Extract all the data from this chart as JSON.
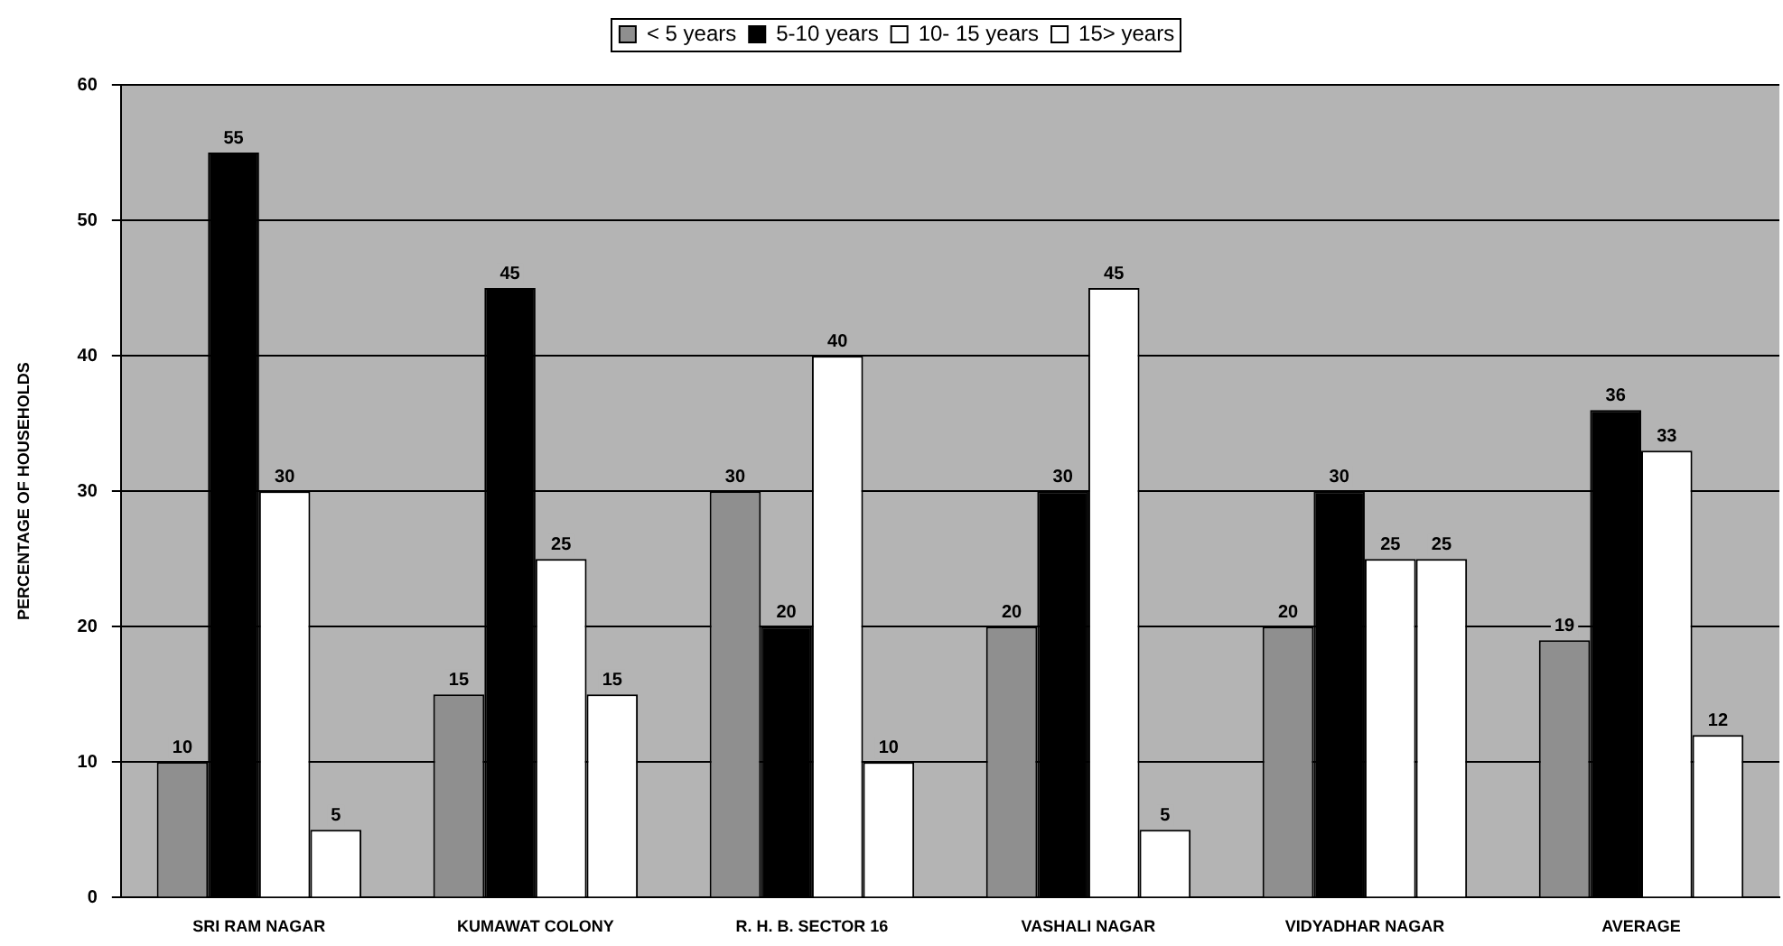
{
  "chart_data": {
    "type": "bar",
    "categories": [
      "SRI RAM NAGAR",
      "KUMAWAT COLONY",
      "R. H. B. SECTOR 16",
      "VASHALI NAGAR",
      "VIDYADHAR NAGAR",
      "AVERAGE"
    ],
    "series": [
      {
        "name": "< 5 years",
        "color": "#8f8f8f",
        "values": [
          10,
          15,
          30,
          20,
          20,
          19
        ]
      },
      {
        "name": "5-10 years",
        "color": "#000000",
        "values": [
          55,
          45,
          20,
          30,
          30,
          36
        ]
      },
      {
        "name": "10- 15 years",
        "color": "#ffffff",
        "values": [
          30,
          25,
          40,
          45,
          25,
          33
        ]
      },
      {
        "name": "15> years",
        "color": "#ffffff",
        "values": [
          5,
          15,
          10,
          5,
          25,
          12
        ]
      }
    ],
    "ylabel": "PERCENTAGE OF HOUSEHOLDS",
    "ylim": [
      0,
      60
    ],
    "yticks": [
      0,
      10,
      20,
      30,
      40,
      50,
      60
    ],
    "grid": "y",
    "legend": "top",
    "data_labels": true
  }
}
